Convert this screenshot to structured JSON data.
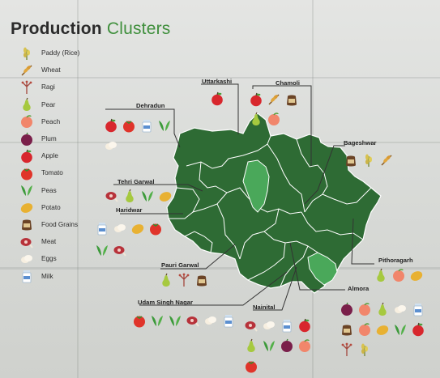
{
  "title": {
    "bold": "Production",
    "accent": "Clusters"
  },
  "colors": {
    "map_fill": "#2e6b34",
    "highlight_fill": "#4aa85a",
    "accent_text": "#3f8f3c"
  },
  "legend": [
    {
      "icon": "paddy-icon",
      "label": "Paddy (Rice)"
    },
    {
      "icon": "wheat-icon",
      "label": "Wheat"
    },
    {
      "icon": "ragi-icon",
      "label": "Ragi"
    },
    {
      "icon": "pear-icon",
      "label": "Pear"
    },
    {
      "icon": "peach-icon",
      "label": "Peach"
    },
    {
      "icon": "plum-icon",
      "label": "Plum"
    },
    {
      "icon": "apple-icon",
      "label": "Apple"
    },
    {
      "icon": "tomato-icon",
      "label": "Tomato"
    },
    {
      "icon": "peas-icon",
      "label": "Peas"
    },
    {
      "icon": "potato-icon",
      "label": "Potato"
    },
    {
      "icon": "food-grains-icon",
      "label": "Food Grains"
    },
    {
      "icon": "meat-icon",
      "label": "Meat"
    },
    {
      "icon": "eggs-icon",
      "label": "Eggs"
    },
    {
      "icon": "milk-icon",
      "label": "Milk"
    }
  ],
  "regions": {
    "uttarkashi": {
      "label": "Uttarkashi",
      "icons": [
        "apple-icon"
      ]
    },
    "chamoli": {
      "label": "Chamoli",
      "icons": [
        "apple-icon",
        "wheat-icon",
        "food-grains-icon",
        "pear-icon",
        "peach-icon"
      ]
    },
    "dehradun": {
      "label": "Dehradun",
      "icons": [
        "apple-icon",
        "tomato-icon",
        "milk-icon",
        "peas-icon",
        "eggs-icon"
      ]
    },
    "bageshwar": {
      "label": "Bageshwar",
      "icons": [
        "food-grains-icon",
        "paddy-icon",
        "wheat-icon"
      ]
    },
    "tehri": {
      "label": "Tehri Garwal",
      "icons": [
        "meat-icon",
        "pear-icon",
        "peas-icon",
        "potato-icon"
      ]
    },
    "haridwar": {
      "label": "Haridwar",
      "icons": [
        "milk-icon",
        "eggs-icon",
        "potato-icon",
        "tomato-icon",
        "peas-icon",
        "meat-icon"
      ]
    },
    "pauri": {
      "label": "Pauri Garwal",
      "icons": [
        "pear-icon",
        "ragi-icon",
        "food-grains-icon"
      ]
    },
    "pithoragarh": {
      "label": "Pithoragarh",
      "icons": [
        "pear-icon",
        "peach-icon",
        "potato-icon"
      ]
    },
    "almora": {
      "label": "Almora",
      "icons": [
        "plum-icon",
        "peach-icon",
        "pear-icon",
        "eggs-icon",
        "milk-icon",
        "food-grains-icon",
        "peach-icon",
        "potato-icon",
        "peas-icon",
        "apple-icon",
        "ragi-icon",
        "paddy-icon"
      ]
    },
    "udam": {
      "label": "Udam Singh Nagar",
      "icons": [
        "tomato-icon",
        "peas-icon",
        "peas-icon",
        "meat-icon",
        "eggs-icon",
        "milk-icon"
      ]
    },
    "nainital": {
      "label": "Nainital",
      "icons": [
        "meat-icon",
        "eggs-icon",
        "milk-icon",
        "apple-icon",
        "pear-icon",
        "peas-icon",
        "plum-icon",
        "peach-icon",
        "tomato-icon"
      ]
    }
  }
}
